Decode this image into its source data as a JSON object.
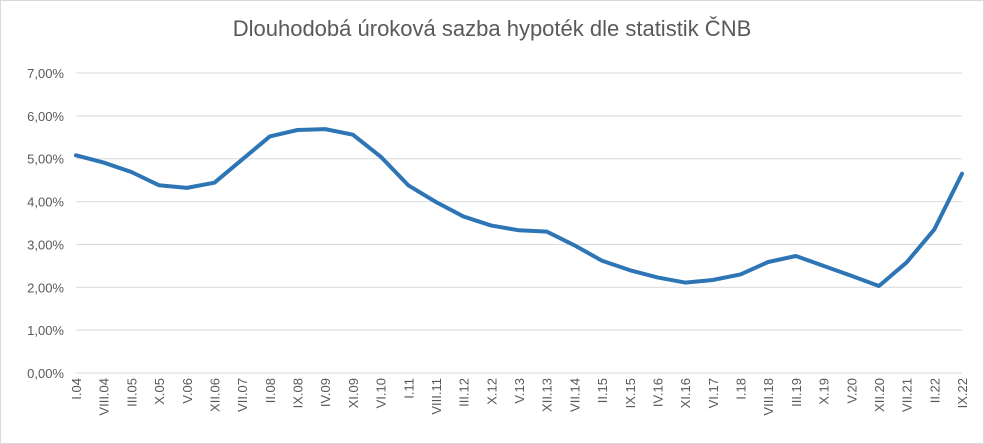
{
  "chart_data": {
    "type": "line",
    "title": "Dlouhodobá úroková sazba hypoték dle statistik ČNB",
    "categories": [
      "I.04",
      "VIII.04",
      "III.05",
      "X.05",
      "V.06",
      "XII.06",
      "VII.07",
      "II.08",
      "IX.08",
      "IV.09",
      "XI.09",
      "VI.10",
      "I.11",
      "VIII.11",
      "III.12",
      "X.12",
      "V.13",
      "XII.13",
      "VII.14",
      "II.15",
      "IX.15",
      "IV.16",
      "XI.16",
      "VI.17",
      "I.18",
      "VIII.18",
      "III.19",
      "X.19",
      "V.20",
      "XII.20",
      "VII.21",
      "II.22",
      "IX.22"
    ],
    "values": [
      5.08,
      4.91,
      4.69,
      4.38,
      4.32,
      4.44,
      4.98,
      5.52,
      5.67,
      5.69,
      5.56,
      5.05,
      4.38,
      3.99,
      3.65,
      3.44,
      3.33,
      3.3,
      2.98,
      2.62,
      2.4,
      2.23,
      2.11,
      2.17,
      2.3,
      2.59,
      2.73,
      2.5,
      2.27,
      2.03,
      2.58,
      3.35,
      4.65
    ],
    "color": "#2e75b6",
    "ylim": [
      0,
      7
    ],
    "yticks": [
      {
        "value": 0,
        "label": "0,00%"
      },
      {
        "value": 1,
        "label": "1,00%"
      },
      {
        "value": 2,
        "label": "2,00%"
      },
      {
        "value": 3,
        "label": "3,00%"
      },
      {
        "value": 4,
        "label": "4,00%"
      },
      {
        "value": 5,
        "label": "5,00%"
      },
      {
        "value": 6,
        "label": "6,00%"
      },
      {
        "value": 7,
        "label": "7,00%"
      }
    ],
    "grid": true
  }
}
